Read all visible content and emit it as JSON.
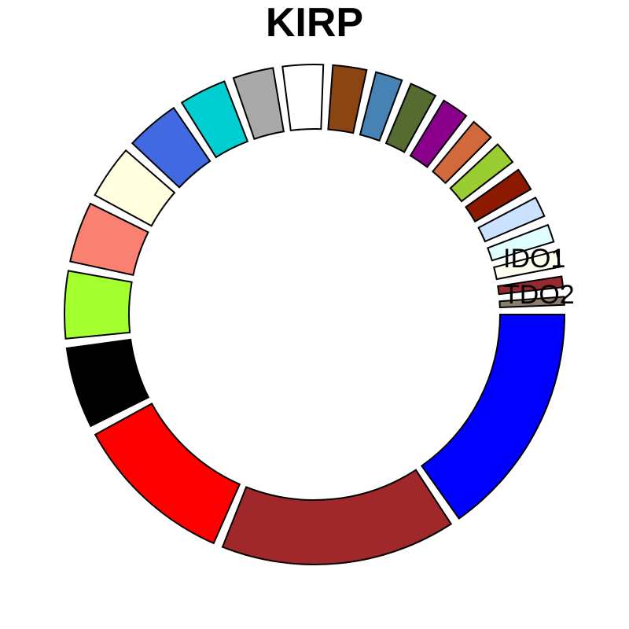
{
  "chart_data": {
    "type": "donut",
    "title": "KIRP",
    "segments": [
      {
        "name": "TDO2",
        "value": 17.5,
        "color": "#0000FF"
      },
      {
        "name": "",
        "value": 17.5,
        "color": "#A0282A"
      },
      {
        "name": "",
        "value": 12.0,
        "color": "#FF0000"
      },
      {
        "name": "",
        "value": 6.0,
        "color": "#000000"
      },
      {
        "name": "",
        "value": 5.0,
        "color": "#A4FF2E"
      },
      {
        "name": "",
        "value": 4.5,
        "color": "#FA8072"
      },
      {
        "name": "",
        "value": 4.0,
        "color": "#FFFFE0"
      },
      {
        "name": "",
        "value": 4.0,
        "color": "#4169E1"
      },
      {
        "name": "",
        "value": 3.5,
        "color": "#00CED1"
      },
      {
        "name": "",
        "value": 3.0,
        "color": "#A9A9A9"
      },
      {
        "name": "",
        "value": 3.0,
        "color": "#FFFFFF"
      },
      {
        "name": "",
        "value": 2.5,
        "color": "#8B4513"
      },
      {
        "name": "",
        "value": 2.0,
        "color": "#4682B4"
      },
      {
        "name": "",
        "value": 2.0,
        "color": "#556B2F"
      },
      {
        "name": "",
        "value": 2.0,
        "color": "#8B008B"
      },
      {
        "name": "",
        "value": 1.7,
        "color": "#D2693C"
      },
      {
        "name": "",
        "value": 1.7,
        "color": "#9ACD32"
      },
      {
        "name": "",
        "value": 1.7,
        "color": "#8B1A00"
      },
      {
        "name": "",
        "value": 1.5,
        "color": "#CAE1FF"
      },
      {
        "name": "",
        "value": 1.3,
        "color": "#E0FFFF"
      },
      {
        "name": "",
        "value": 1.2,
        "color": "#FFFFF0"
      },
      {
        "name": "",
        "value": 0.8,
        "color": "#962A30"
      },
      {
        "name": "IDO1",
        "value": 0.6,
        "color": "#8B7D6B"
      }
    ]
  }
}
